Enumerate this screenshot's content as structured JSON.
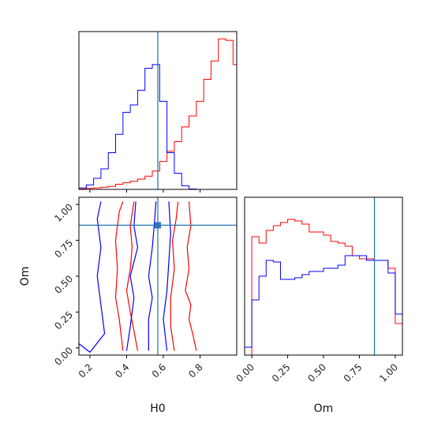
{
  "chart_data": {
    "type": "corner",
    "parameters": [
      "H0",
      "Om"
    ],
    "truth": {
      "H0": 0.57,
      "Om": 0.855
    },
    "colors": {
      "red": "#ff0000",
      "blue": "#0000ff",
      "truth": "#2f78b4"
    },
    "panels": {
      "h0_hist": {
        "type": "step-histogram",
        "xlim": [
          0.14,
          1.0
        ],
        "bin_edges": [
          0.14,
          0.18,
          0.22,
          0.26,
          0.3,
          0.34,
          0.38,
          0.42,
          0.46,
          0.5,
          0.54,
          0.58,
          0.62,
          0.66,
          0.7,
          0.74,
          0.78,
          0.82,
          0.86,
          0.9,
          0.94,
          0.98,
          1.0
        ],
        "series": [
          {
            "color": "red",
            "values": [
              0.5,
              1.5,
              2,
              3,
              4,
              7,
              9,
              11,
              14,
              18,
              25,
              38,
              52,
              65,
              85,
              100,
              120,
              150,
              175,
              205,
              203,
              170
            ]
          },
          {
            "color": "blue",
            "values": [
              2,
              6,
              15,
              28,
              50,
              75,
              105,
              115,
              135,
              165,
              170,
              120,
              50,
              22,
              5,
              0.5,
              0,
              0,
              0,
              0,
              0,
              0
            ]
          }
        ]
      },
      "om_hist": {
        "type": "step-histogram",
        "xlim": [
          -0.05,
          1.05
        ],
        "xticks": [
          "0.00",
          "0.25",
          "0.50",
          "0.75",
          "1.00"
        ],
        "bin_edges": [
          -0.05,
          0.0,
          0.05,
          0.1,
          0.15,
          0.2,
          0.25,
          0.3,
          0.35,
          0.4,
          0.45,
          0.5,
          0.55,
          0.6,
          0.65,
          0.7,
          0.75,
          0.8,
          0.85,
          0.9,
          0.95,
          1.0,
          1.05
        ],
        "series": [
          {
            "color": "red",
            "values": [
              0,
              75,
              71,
              79,
              82,
              84,
              86,
              85,
              83,
              78,
              78,
              76,
              72,
              71,
              69,
              63,
              61,
              61,
              60,
              60,
              55,
              20
            ]
          },
          {
            "color": "blue",
            "values": [
              5,
              35,
              50,
              60,
              59,
              48,
              48,
              49,
              51,
              53,
              53,
              55,
              55,
              57,
              63,
              63,
              63,
              60,
              60,
              60,
              52,
              26
            ]
          }
        ]
      },
      "joint": {
        "type": "contour",
        "xlim": [
          0.14,
          1.0
        ],
        "ylim": [
          -0.05,
          1.05
        ],
        "xticks": [
          "0.2",
          "0.4",
          "0.6",
          "0.8"
        ],
        "yticks": [
          "0.00",
          "0.25",
          "0.50",
          "0.75",
          "1.00"
        ],
        "xlabel": "H0",
        "ylabel": "Om",
        "contours": {
          "red": [
            [
              [
                0.38,
                -0.02
              ],
              [
                0.36,
                0.2
              ],
              [
                0.34,
                0.35
              ],
              [
                0.35,
                0.55
              ],
              [
                0.34,
                0.75
              ],
              [
                0.36,
                0.95
              ],
              [
                0.38,
                1.02
              ]
            ],
            [
              [
                0.46,
                -0.02
              ],
              [
                0.44,
                0.12
              ],
              [
                0.42,
                0.25
              ],
              [
                0.4,
                0.4
              ],
              [
                0.42,
                0.55
              ],
              [
                0.43,
                0.7
              ],
              [
                0.42,
                0.85
              ],
              [
                0.44,
                1.02
              ]
            ],
            [
              [
                0.66,
                -0.02
              ],
              [
                0.64,
                0.15
              ],
              [
                0.64,
                0.35
              ],
              [
                0.66,
                0.55
              ],
              [
                0.65,
                0.75
              ],
              [
                0.67,
                0.9
              ],
              [
                0.68,
                1.02
              ]
            ],
            [
              [
                0.78,
                -0.02
              ],
              [
                0.76,
                0.1
              ],
              [
                0.74,
                0.2
              ],
              [
                0.75,
                0.3
              ],
              [
                0.72,
                0.4
              ],
              [
                0.74,
                0.55
              ],
              [
                0.73,
                0.7
              ],
              [
                0.75,
                0.85
              ],
              [
                0.74,
                1.02
              ]
            ]
          ],
          "blue": [
            [
              [
                0.14,
                0.03
              ],
              [
                0.2,
                -0.03
              ],
              [
                0.28,
                0.1
              ],
              [
                0.26,
                0.3
              ],
              [
                0.24,
                0.5
              ],
              [
                0.26,
                0.7
              ],
              [
                0.24,
                0.9
              ],
              [
                0.26,
                1.02
              ]
            ],
            [
              [
                0.4,
                -0.02
              ],
              [
                0.42,
                0.15
              ],
              [
                0.44,
                0.35
              ],
              [
                0.42,
                0.5
              ],
              [
                0.46,
                0.7
              ],
              [
                0.44,
                0.85
              ],
              [
                0.45,
                1.02
              ]
            ],
            [
              [
                0.52,
                -0.02
              ],
              [
                0.52,
                0.2
              ],
              [
                0.54,
                0.35
              ],
              [
                0.52,
                0.5
              ],
              [
                0.54,
                0.7
              ],
              [
                0.55,
                0.85
              ],
              [
                0.56,
                1.02
              ]
            ],
            [
              [
                0.62,
                -0.02
              ],
              [
                0.6,
                0.2
              ],
              [
                0.62,
                0.4
              ],
              [
                0.63,
                0.6
              ],
              [
                0.64,
                0.8
              ],
              [
                0.63,
                1.02
              ]
            ]
          ]
        }
      }
    }
  }
}
